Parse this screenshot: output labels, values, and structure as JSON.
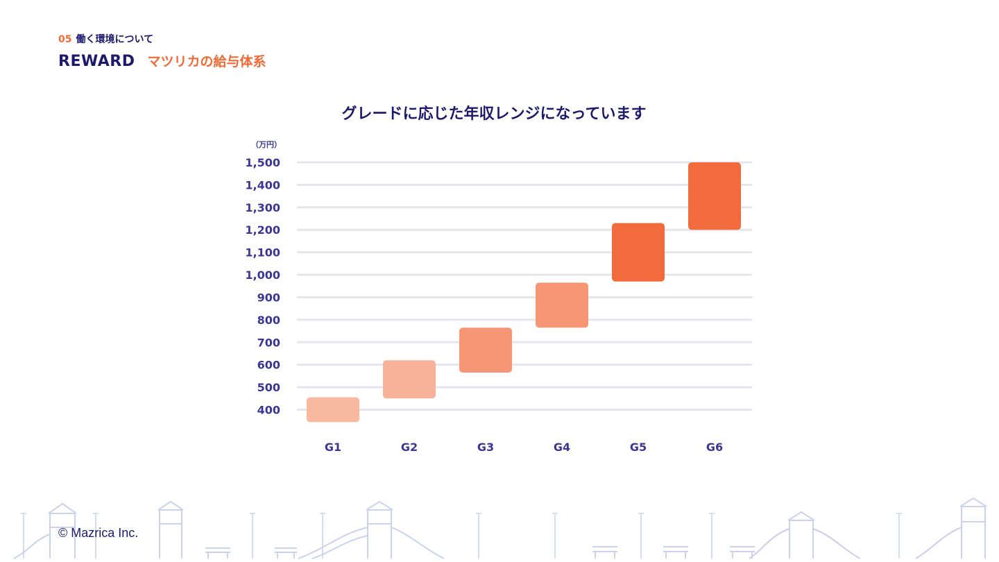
{
  "header": {
    "section_number": "05",
    "section_label": "働く環境について",
    "title_en": "REWARD",
    "title_ja": "マツリカの給与体系"
  },
  "chart_heading": "グレードに応じた年収レンジになっています",
  "footer": {
    "copyright": "© Mazrica Inc."
  },
  "colors": {
    "navy": "#1d1a6e",
    "orange": "#f06a36",
    "axis_text": "#3b3593",
    "grid": "#e6e4ef"
  },
  "chart_data": {
    "type": "bar",
    "title": "",
    "unit_label": "（万円）",
    "xlabel": "",
    "ylabel": "",
    "ylim": [
      300,
      1500
    ],
    "yticks": [
      400,
      500,
      600,
      700,
      800,
      900,
      1000,
      1100,
      1200,
      1300,
      1400,
      1500
    ],
    "ytick_labels": [
      "400",
      "500",
      "600",
      "700",
      "800",
      "900",
      "1,000",
      "1,100",
      "1,200",
      "1,300",
      "1,400",
      "1,500"
    ],
    "grid": true,
    "categories": [
      "G1",
      "G2",
      "G3",
      "G4",
      "G5",
      "G6"
    ],
    "ranges": [
      {
        "low": 345,
        "high": 455
      },
      {
        "low": 450,
        "high": 620
      },
      {
        "low": 565,
        "high": 765
      },
      {
        "low": 765,
        "high": 965
      },
      {
        "low": 970,
        "high": 1230
      },
      {
        "low": 1200,
        "high": 1500
      }
    ],
    "bar_colors": [
      "#f8b9a0",
      "#f7b299",
      "#f69675",
      "#f69675",
      "#f26b3d",
      "#f26b3d"
    ]
  }
}
